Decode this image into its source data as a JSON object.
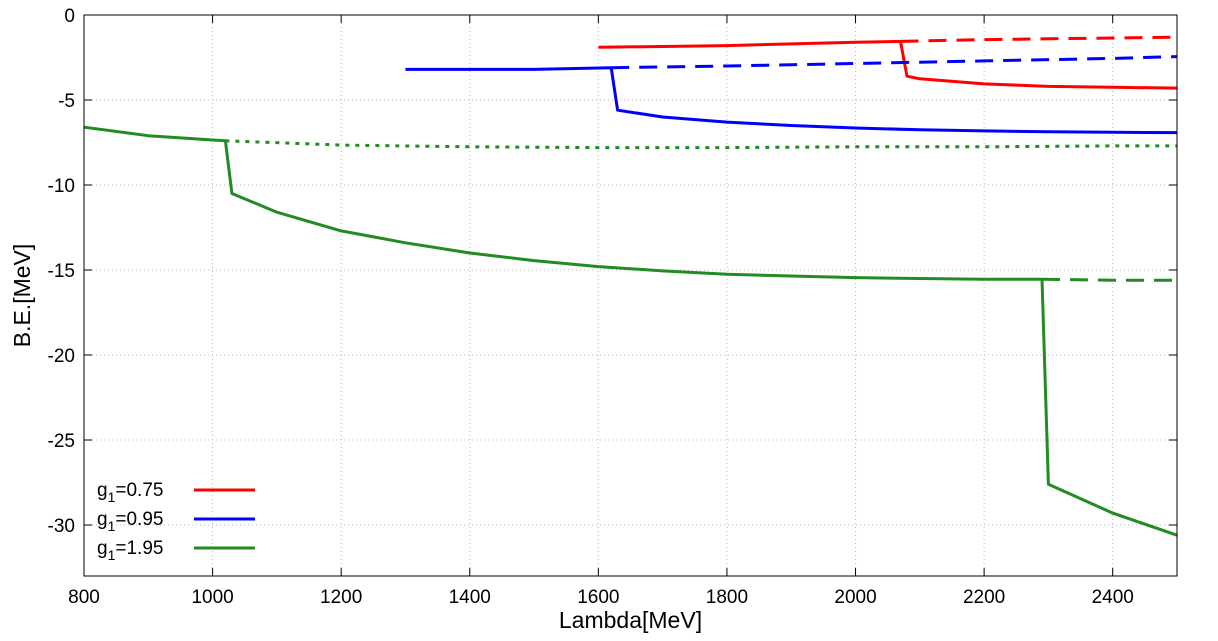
{
  "chart_data": {
    "type": "line",
    "title": "",
    "xlabel": "Lambda[MeV]",
    "ylabel": "B.E.[MeV]",
    "xlim": [
      800,
      2500
    ],
    "ylim": [
      -33,
      0
    ],
    "xticks": [
      800,
      1000,
      1200,
      1400,
      1600,
      1800,
      2000,
      2200,
      2400
    ],
    "yticks": [
      0,
      -5,
      -10,
      -15,
      -20,
      -25,
      -30
    ],
    "grid": true,
    "legend_position": "bottom-left",
    "legend": [
      {
        "label_main": "g",
        "label_sub": "1",
        "label_rest": "=0.75",
        "color": "#ff0000"
      },
      {
        "label_main": "g",
        "label_sub": "1",
        "label_rest": "=0.95",
        "color": "#0000ff"
      },
      {
        "label_main": "g",
        "label_sub": "1",
        "label_rest": "=1.95",
        "color": "#228b22"
      }
    ],
    "series": [
      {
        "color": "#ff0000",
        "dash": "solid",
        "points": [
          [
            1600,
            -1.9
          ],
          [
            1800,
            -1.8
          ],
          [
            2000,
            -1.6
          ],
          [
            2070,
            -1.55
          ],
          [
            2080,
            -3.6
          ],
          [
            2100,
            -3.75
          ],
          [
            2200,
            -4.05
          ],
          [
            2300,
            -4.2
          ],
          [
            2400,
            -4.25
          ],
          [
            2500,
            -4.3
          ]
        ]
      },
      {
        "color": "#ff0000",
        "dash": "dashed",
        "points": [
          [
            2070,
            -1.55
          ],
          [
            2200,
            -1.45
          ],
          [
            2400,
            -1.35
          ],
          [
            2500,
            -1.3
          ]
        ]
      },
      {
        "color": "#0000ff",
        "dash": "solid",
        "points": [
          [
            1300,
            -3.2
          ],
          [
            1500,
            -3.2
          ],
          [
            1620,
            -3.1
          ],
          [
            1630,
            -5.6
          ],
          [
            1700,
            -6.0
          ],
          [
            1800,
            -6.3
          ],
          [
            1900,
            -6.5
          ],
          [
            2000,
            -6.65
          ],
          [
            2100,
            -6.75
          ],
          [
            2200,
            -6.82
          ],
          [
            2300,
            -6.87
          ],
          [
            2400,
            -6.9
          ],
          [
            2500,
            -6.92
          ]
        ]
      },
      {
        "color": "#0000ff",
        "dash": "dashed",
        "points": [
          [
            1620,
            -3.1
          ],
          [
            1800,
            -3.0
          ],
          [
            2000,
            -2.85
          ],
          [
            2200,
            -2.7
          ],
          [
            2400,
            -2.55
          ],
          [
            2500,
            -2.45
          ]
        ]
      },
      {
        "color": "#228b22",
        "dash": "solid",
        "points": [
          [
            800,
            -6.6
          ],
          [
            900,
            -7.1
          ],
          [
            1000,
            -7.35
          ],
          [
            1020,
            -7.4
          ],
          [
            1030,
            -10.5
          ],
          [
            1100,
            -11.6
          ],
          [
            1200,
            -12.7
          ],
          [
            1300,
            -13.4
          ],
          [
            1400,
            -14.0
          ],
          [
            1500,
            -14.45
          ],
          [
            1600,
            -14.8
          ],
          [
            1700,
            -15.05
          ],
          [
            1800,
            -15.25
          ],
          [
            1900,
            -15.35
          ],
          [
            2000,
            -15.45
          ],
          [
            2100,
            -15.5
          ],
          [
            2200,
            -15.55
          ],
          [
            2290,
            -15.55
          ],
          [
            2300,
            -27.6
          ],
          [
            2400,
            -29.3
          ],
          [
            2500,
            -30.6
          ]
        ]
      },
      {
        "color": "#228b22",
        "dash": "dotted",
        "points": [
          [
            1020,
            -7.4
          ],
          [
            1200,
            -7.65
          ],
          [
            1400,
            -7.75
          ],
          [
            1600,
            -7.8
          ],
          [
            1800,
            -7.8
          ],
          [
            2000,
            -7.75
          ],
          [
            2200,
            -7.75
          ],
          [
            2400,
            -7.7
          ],
          [
            2500,
            -7.7
          ]
        ]
      },
      {
        "color": "#228b22",
        "dash": "dashed",
        "points": [
          [
            2290,
            -15.55
          ],
          [
            2400,
            -15.6
          ],
          [
            2500,
            -15.6
          ]
        ]
      }
    ]
  }
}
